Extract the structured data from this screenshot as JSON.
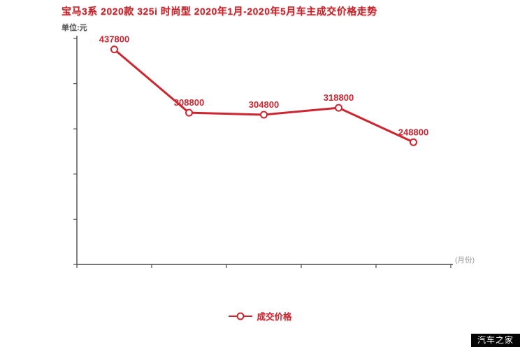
{
  "page": {
    "watermark": "汽车之家"
  },
  "colors": {
    "accent": "#cd2630",
    "title": "#c2252b",
    "axis": "#4a4a4a",
    "muted": "#999999",
    "watermark_bg": "#050505",
    "watermark_fg": "#ffffff"
  },
  "chart_data": {
    "type": "line",
    "title": "宝马3系 2020款 325i 时尚型 2020年1月-2020年5月车主成交价格走势",
    "unit_label": "单位:元",
    "x_end_label": "(月份)",
    "legend_label": "成交价格",
    "legend_position": "bottom",
    "grid": false,
    "x_tick_labels_visible": false,
    "ylim": [
      0,
      460000
    ],
    "series": [
      {
        "name": "成交价格",
        "color": "#cd2630",
        "values": [
          437800,
          308800,
          304800,
          318800,
          248800
        ],
        "point_labels": [
          "437800",
          "308800",
          "304800",
          "318800",
          "248800"
        ]
      }
    ]
  }
}
